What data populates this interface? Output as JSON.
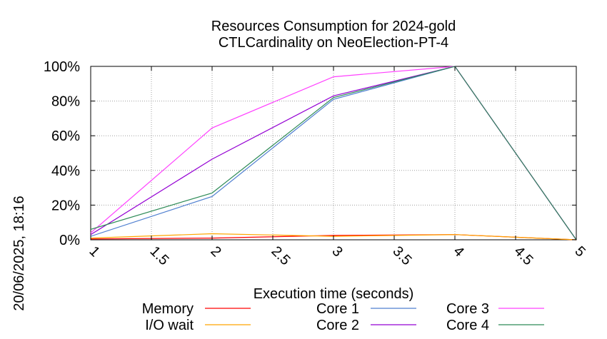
{
  "chart_data": {
    "type": "line",
    "title": [
      "Resources Consumption for 2024-gold",
      "CTLCardinality on NeoElection-PT-4"
    ],
    "xlabel": "Execution time (seconds)",
    "ylabel": "",
    "side_label": "20/06/2025, 18:16",
    "xlim": [
      1,
      5
    ],
    "ylim": [
      0,
      100
    ],
    "x_ticks": [
      1,
      1.5,
      2,
      2.5,
      3,
      3.5,
      4,
      4.5,
      5
    ],
    "x_tick_labels": [
      "1",
      "1.5",
      "2",
      "2.5",
      "3",
      "3.5",
      "4",
      "4.5",
      "5"
    ],
    "y_ticks": [
      0,
      20,
      40,
      60,
      80,
      100
    ],
    "y_tick_labels": [
      "0%",
      "20%",
      "40%",
      "60%",
      "80%",
      "100%"
    ],
    "grid": true,
    "legend_position": "bottom",
    "series": [
      {
        "name": "Memory",
        "color": "#ff0000",
        "x": [
          1,
          2,
          3,
          4,
          5
        ],
        "values": [
          0.5,
          1,
          2.5,
          3,
          0
        ]
      },
      {
        "name": "I/O wait",
        "color": "#ffa500",
        "x": [
          1,
          2,
          3,
          4,
          5
        ],
        "values": [
          1,
          3.5,
          2,
          3,
          0
        ]
      },
      {
        "name": "Core 1",
        "color": "#4f7fd0",
        "x": [
          1,
          2,
          3,
          4,
          5
        ],
        "values": [
          2,
          25,
          81,
          100,
          0
        ]
      },
      {
        "name": "Core 2",
        "color": "#9400d3",
        "x": [
          1,
          2,
          3,
          4,
          5
        ],
        "values": [
          3,
          46.5,
          83,
          100,
          0
        ]
      },
      {
        "name": "Core 3",
        "color": "#ff40ff",
        "x": [
          1,
          2,
          3,
          4,
          5
        ],
        "values": [
          4,
          64.5,
          94,
          100,
          0
        ]
      },
      {
        "name": "Core 4",
        "color": "#2e8b57",
        "x": [
          1,
          2,
          3,
          4,
          5
        ],
        "values": [
          6,
          27,
          82,
          100,
          0
        ]
      }
    ]
  }
}
